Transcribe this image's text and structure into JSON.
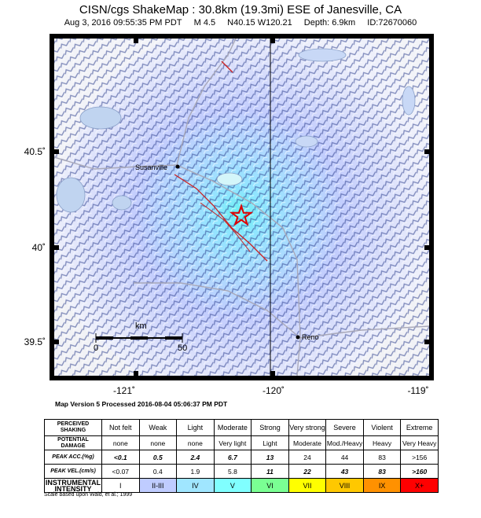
{
  "title": {
    "line1": "CISN/cgs ShakeMap : 30.8km (19.3mi) ESE of Janesville, CA",
    "date": "Aug  3, 2016 09:55:35 PM PDT",
    "magnitude": "M 4.5",
    "location": "N40.15 W120.21",
    "depth": "Depth: 6.9km",
    "id": "ID:72670060"
  },
  "map": {
    "lat_labels": [
      "40.5˚",
      "40˚",
      "39.5˚"
    ],
    "lon_labels": [
      "-121˚",
      "-120˚",
      "-119˚"
    ],
    "places": [
      "Susanville",
      "Reno"
    ],
    "scale_unit": "km",
    "scale_ticks": [
      "0",
      "50"
    ],
    "epicenter_color": "#e00000",
    "fault_color": "#cc2020"
  },
  "version_text": "Map Version 5 Processed 2016-08-04 05:06:37 PM PDT",
  "legend": {
    "row_headers": [
      "PERCEIVED SHAKING",
      "POTENTIAL DAMAGE",
      "PEAK ACC.(%g)",
      "PEAK VEL.(cm/s)",
      "INSTRUMENTAL INTENSITY"
    ],
    "shaking": [
      "Not felt",
      "Weak",
      "Light",
      "Moderate",
      "Strong",
      "Very strong",
      "Severe",
      "Violent",
      "Extreme"
    ],
    "damage": [
      "none",
      "none",
      "none",
      "Very light",
      "Light",
      "Moderate",
      "Mod./Heavy",
      "Heavy",
      "Very Heavy"
    ],
    "peak_acc": [
      "<0.1",
      "0.5",
      "2.4",
      "6.7",
      "13",
      "24",
      "44",
      "83",
      ">156"
    ],
    "peak_vel": [
      "<0.07",
      "0.4",
      "1.9",
      "5.8",
      "11",
      "22",
      "43",
      "83",
      ">160"
    ],
    "intensity": [
      "I",
      "II-III",
      "IV",
      "V",
      "VI",
      "VII",
      "VIII",
      "IX",
      "X+"
    ],
    "intensity_colors": [
      "#ffffff",
      "#bfccff",
      "#a0e6ff",
      "#80ffff",
      "#7aff93",
      "#ffff00",
      "#ffc800",
      "#ff9100",
      "#ff0000"
    ],
    "note": "Scale based upon Wald, et al.; 1999"
  }
}
